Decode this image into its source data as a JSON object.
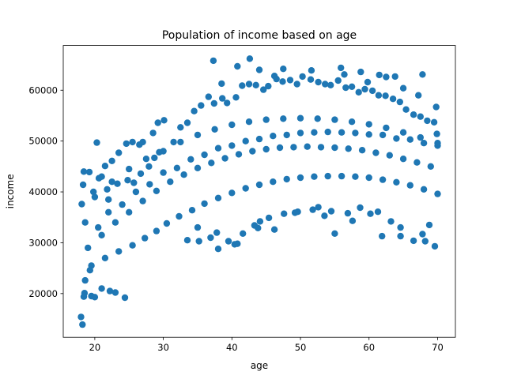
{
  "chart_data": {
    "type": "scatter",
    "title": "Population of income based on age",
    "xlabel": "age",
    "ylabel": "income",
    "xlim": [
      15.4,
      72.6
    ],
    "ylim": [
      11400,
      68800
    ],
    "xticks": [
      20,
      30,
      40,
      50,
      60,
      70
    ],
    "yticks": [
      20000,
      30000,
      40000,
      50000,
      60000
    ],
    "marker_color": "#1f77b4",
    "grid": false,
    "legend": "none",
    "series": [
      {
        "x": [
          18.0,
          18.2,
          18.4,
          18.5,
          18.6,
          19.5,
          19.3,
          20.0,
          21.0,
          22.2,
          23.0,
          24.4,
          20.3,
          21.5,
          22.5,
          23.5,
          24.6,
          25.5,
          26.5,
          27.0,
          28.5,
          29.2,
          30.1,
          18.1,
          18.3,
          20.6,
          21.8,
          23.3,
          24.8,
          25.7,
          26.7,
          27.9,
          28.7,
          29.4,
          31.5,
          32.5,
          33.5,
          34.5,
          35.5,
          36.6,
          37.4,
          38.6,
          39.3,
          40.6,
          41.5,
          42.5,
          43.5,
          44.6,
          45.3,
          46.5,
          47.4,
          48.5,
          49.5,
          50.3,
          51.5,
          52.6,
          53.6,
          54.4,
          55.5,
          56.6,
          57.5,
          58.5,
          59.4,
          60.5,
          61.4,
          62.4,
          63.5,
          64.5,
          65.4,
          66.5,
          67.5,
          68.5,
          69.5,
          69.8,
          33.5,
          35.2,
          36.9,
          38.0,
          39.5,
          40.4,
          41.6,
          43.3,
          44.1,
          45.4,
          47.6,
          49.6,
          51.8,
          53.5,
          54.5,
          56.9,
          58.7,
          60.2,
          61.9,
          63.2,
          64.6,
          66.5,
          67.8,
          68.8,
          69.6,
          35.0,
          37.8,
          40.8,
          43.8,
          46.2,
          49.2,
          52.6,
          55.0,
          57.6,
          61.3,
          64.6,
          68.2,
          38.5,
          46.2,
          55.9,
          61.5,
          63.8,
          67.8,
          37.3,
          40.8,
          42.6,
          44.0,
          47.5,
          51.6,
          56.4,
          58.8,
          59.8,
          62.5,
          65.0,
          67.2,
          69.9,
          19.5,
          21.5,
          23.5,
          25.5,
          27.3,
          29.0,
          30.5,
          32.3,
          34.2,
          36.0,
          38.0,
          40.0,
          42.0,
          44.0,
          46.0,
          48.0,
          50.0,
          52.0,
          54.0,
          56.0,
          58.0,
          60.0,
          62.0,
          64.0,
          66.0,
          68.0,
          70.0,
          20.5,
          24.0,
          28.0,
          32.0,
          36.0,
          40.0,
          44.0,
          48.0,
          52.0,
          56.0,
          60.0,
          64.0,
          68.0,
          22.0,
          26.0,
          30.0,
          34.0,
          38.0,
          42.0,
          46.0,
          50.0,
          54.0,
          58.0,
          62.0,
          66.0,
          70.0,
          19.0,
          21.0,
          23.0,
          25.0,
          27.0,
          29.0,
          31.0,
          33.0,
          35.0,
          37.0,
          39.0,
          41.0,
          43.0,
          45.0,
          47.0,
          49.0,
          51.0,
          53.0,
          55.0,
          57.0,
          59.0,
          61.0,
          63.0,
          65.0,
          67.0,
          69.0,
          20.0,
          22.5,
          25.0,
          27.5,
          30.0,
          32.5,
          35.0,
          37.5,
          40.0,
          42.5,
          45.0,
          47.5,
          50.0,
          52.5,
          55.0,
          57.5,
          60.0,
          62.5,
          65.0,
          67.5,
          70.0,
          18.6,
          19.2,
          18.4,
          19.8,
          21.0,
          22.0
        ],
        "y": [
          15400,
          13900,
          19400,
          20100,
          22600,
          19500,
          24600,
          19300,
          21000,
          20500,
          20200,
          19200,
          49700,
          45100,
          46100,
          47700,
          49500,
          49800,
          49300,
          49800,
          51600,
          53600,
          54100,
          37600,
          41400,
          42700,
          40500,
          41600,
          42300,
          41800,
          43600,
          45000,
          46700,
          47800,
          49800,
          52700,
          53600,
          55900,
          57000,
          58700,
          57400,
          58400,
          57500,
          58600,
          60900,
          61200,
          61000,
          60100,
          60800,
          62200,
          61700,
          62000,
          61200,
          62700,
          62100,
          61600,
          61200,
          61000,
          61900,
          60500,
          60700,
          59600,
          60200,
          59900,
          59000,
          58900,
          58300,
          57700,
          56200,
          55200,
          54800,
          54000,
          53700,
          56700,
          30500,
          30300,
          31000,
          28800,
          30300,
          29700,
          31800,
          33400,
          34200,
          34900,
          35700,
          36100,
          36500,
          35300,
          36200,
          35800,
          36900,
          35700,
          31300,
          34200,
          33000,
          30400,
          31700,
          33500,
          29300,
          33000,
          32000,
          29800,
          32900,
          32600,
          35900,
          37000,
          31800,
          34300,
          36100,
          31300,
          30300,
          61300,
          62800,
          64400,
          63000,
          62700,
          63100,
          65800,
          64700,
          66200,
          64000,
          64200,
          63900,
          63100,
          63600,
          61600,
          62600,
          60400,
          59000,
          51400,
          25500,
          27000,
          28300,
          29500,
          30900,
          32300,
          33800,
          35200,
          36400,
          37700,
          38800,
          39800,
          40700,
          41400,
          42000,
          42500,
          42800,
          43000,
          43100,
          43100,
          43000,
          42800,
          42400,
          41900,
          41300,
          40500,
          39600,
          33000,
          37500,
          41500,
          44700,
          47300,
          49100,
          50400,
          51200,
          51700,
          51700,
          51300,
          50500,
          49600,
          36000,
          40000,
          43800,
          46400,
          48600,
          50000,
          51000,
          51600,
          51800,
          51600,
          51200,
          50300,
          49100,
          29000,
          31500,
          34000,
          36000,
          38200,
          40200,
          42000,
          43400,
          44700,
          45700,
          46600,
          47400,
          48000,
          48400,
          48700,
          48800,
          48900,
          48800,
          48700,
          48500,
          48200,
          47700,
          47200,
          46500,
          45800,
          45000,
          39000,
          42000,
          44500,
          46500,
          48000,
          49800,
          51200,
          52300,
          53200,
          53800,
          54200,
          54400,
          54500,
          54400,
          54200,
          53800,
          53300,
          52600,
          51700,
          50700,
          49600,
          34000,
          43900,
          44000,
          40000,
          43000,
          38500
        ]
      }
    ]
  }
}
